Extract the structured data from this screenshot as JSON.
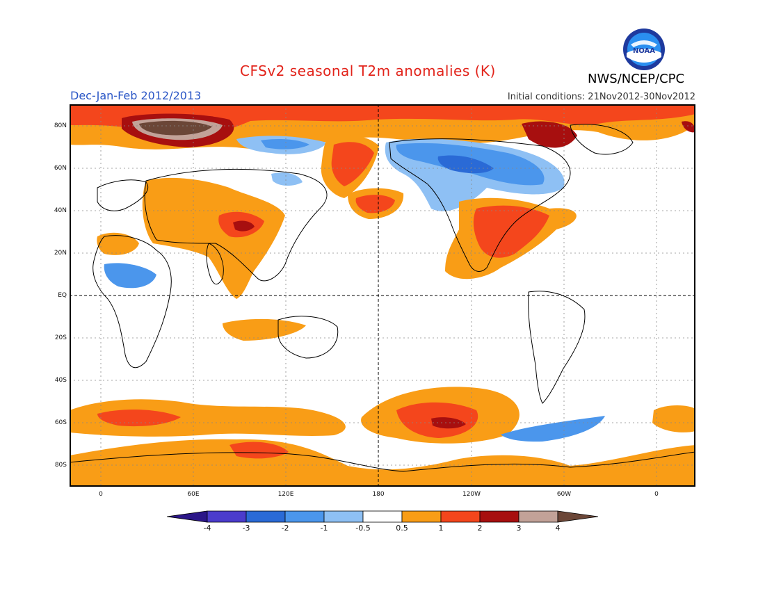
{
  "header": {
    "title": "CFSv2 seasonal T2m anomalies (K)",
    "agency": "NWS/NCEP/CPC",
    "period": "Dec-Jan-Feb 2012/2013",
    "initial_conditions": "Initial conditions: 21Nov2012-30Nov2012",
    "logo_text": "NOAA"
  },
  "map": {
    "projection": "cylindrical-equidistant",
    "lat_labels": [
      "80N",
      "60N",
      "40N",
      "20N",
      "EQ",
      "20S",
      "40S",
      "60S",
      "80S"
    ],
    "lon_labels": [
      "0",
      "60E",
      "120E",
      "180",
      "120W",
      "60W",
      "0"
    ],
    "lat_range": [
      -90,
      90
    ],
    "lon_range": [
      -20,
      380
    ]
  },
  "colorbar": {
    "levels": [
      "-4",
      "-3",
      "-2",
      "-1",
      "-0.5",
      "0.5",
      "1",
      "2",
      "3",
      "4"
    ],
    "colors": [
      "#2b1688",
      "#4b3ccc",
      "#2a6ad6",
      "#4b96ec",
      "#8ec0f4",
      "#ffffff",
      "#f99d16",
      "#f4461c",
      "#a70f0f",
      "#c2a298",
      "#6b4637"
    ]
  },
  "colors": {
    "title": "#e2231a",
    "period": "#2a56c6",
    "frame": "#000000",
    "cold_light": "#8ec0f4",
    "cold_medium": "#4b96ec",
    "cold_strong": "#2a6ad6",
    "cold_extreme": "#4b3ccc",
    "warm_light": "#f99d16",
    "warm_medium": "#f4461c",
    "warm_strong": "#a70f0f",
    "warm_extreme": "#c2a298",
    "warm_max": "#6b4637"
  }
}
